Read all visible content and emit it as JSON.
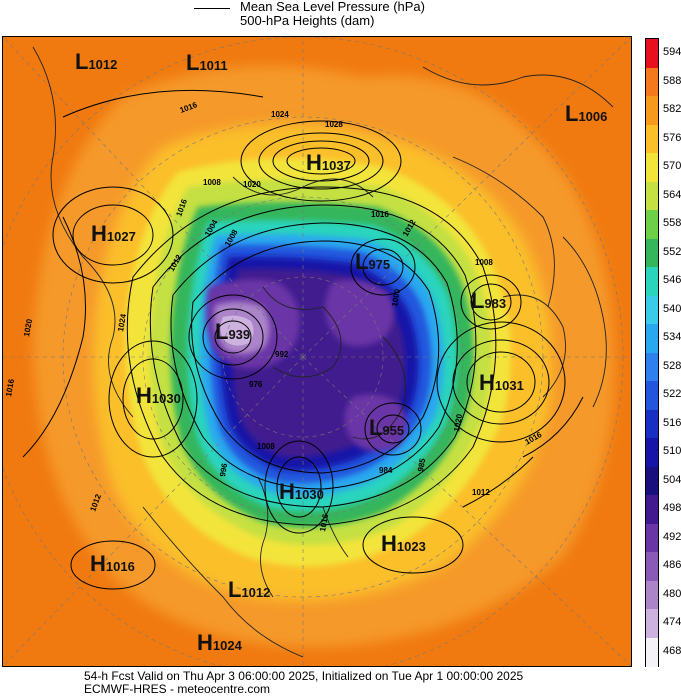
{
  "legend": {
    "line1": "Mean Sea Level Pressure (hPa)",
    "line2": "500-hPa Heights (dam)"
  },
  "colorbar": {
    "ticks": [
      "594",
      "588",
      "582",
      "576",
      "570",
      "564",
      "558",
      "552",
      "546",
      "540",
      "534",
      "528",
      "522",
      "516",
      "510",
      "504",
      "498",
      "492",
      "486",
      "480",
      "474",
      "468"
    ],
    "colors": [
      "#e8101e",
      "#f4791c",
      "#f69a1e",
      "#fbbf2a",
      "#f3e43a",
      "#c5e043",
      "#6ecf49",
      "#36b65b",
      "#2ad4bd",
      "#39cbe8",
      "#2aa8ef",
      "#2f7fee",
      "#2456dd",
      "#182fc4",
      "#1515a8",
      "#190f7d",
      "#411a8f",
      "#6a36a6",
      "#8b5ab6",
      "#ab84c9",
      "#cdb1de",
      "#f4f1f7"
    ]
  },
  "map": {
    "centers": [
      {
        "type": "L",
        "value": "1012"
      },
      {
        "type": "L",
        "value": "1011"
      },
      {
        "type": "L",
        "value": "1006"
      },
      {
        "type": "H",
        "value": "1037"
      },
      {
        "type": "H",
        "value": "1027"
      },
      {
        "type": "L",
        "value": "975"
      },
      {
        "type": "L",
        "value": "983"
      },
      {
        "type": "L",
        "value": "939"
      },
      {
        "type": "H",
        "value": "1030"
      },
      {
        "type": "H",
        "value": "1031"
      },
      {
        "type": "L",
        "value": "955"
      },
      {
        "type": "H",
        "value": "1030"
      },
      {
        "type": "H",
        "value": "1016"
      },
      {
        "type": "H",
        "value": "1023"
      },
      {
        "type": "L",
        "value": "1012"
      },
      {
        "type": "H",
        "value": "1024"
      }
    ],
    "isobar_labels": [
      "1016",
      "1024",
      "1028",
      "1020",
      "1008",
      "1016",
      "1008",
      "1004",
      "1012",
      "1016",
      "1024",
      "1020",
      "1016",
      "1012",
      "1012",
      "1016",
      "1020",
      "992",
      "984",
      "996",
      "1000",
      "976",
      "1008",
      "985",
      "1012",
      "1016",
      "1008"
    ]
  },
  "footer": {
    "line1": "54-h Fcst Valid on Thu Apr  3 06:00:00 2025, Initialized on Tue Apr  1 00:00:00 2025",
    "line2": "ECMWF-HRES  -  meteocentre.com"
  }
}
